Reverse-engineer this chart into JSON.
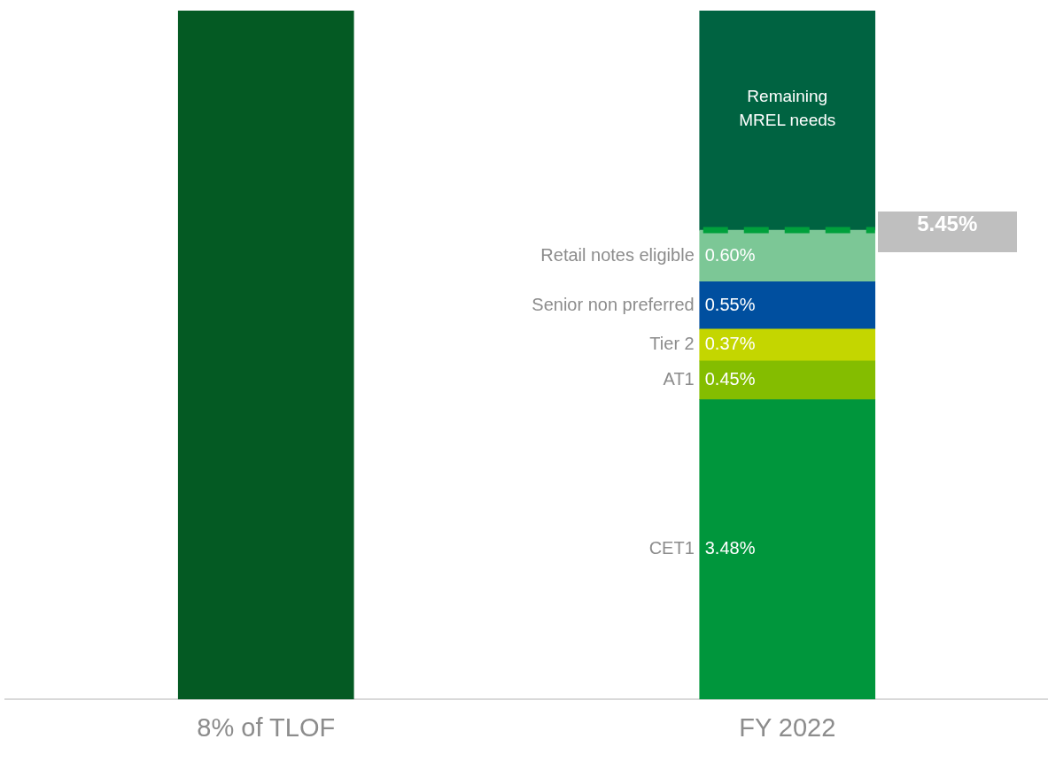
{
  "chart_data": {
    "type": "bar",
    "stacked": true,
    "categories": [
      "8% of TLOF",
      "FY 2022"
    ],
    "ylim": [
      0,
      8
    ],
    "grid": false,
    "legend": false,
    "series": [
      {
        "color": "#045a23",
        "values": [
          8,
          null
        ]
      },
      {
        "name": "CET1",
        "color": "#00963c",
        "values": [
          null,
          3.48
        ],
        "value_labels": [
          null,
          "3.48%"
        ]
      },
      {
        "name": "AT1",
        "color": "#84bd00",
        "values": [
          null,
          0.45
        ],
        "value_labels": [
          null,
          "0.45%"
        ]
      },
      {
        "name": "Tier 2",
        "color": "#c4d600",
        "values": [
          null,
          0.37
        ],
        "value_labels": [
          null,
          "0.37%"
        ]
      },
      {
        "name": "Senior non preferred",
        "color": "#004f9f",
        "values": [
          null,
          0.55
        ],
        "value_labels": [
          null,
          "0.55%"
        ]
      },
      {
        "name": "Retail notes eligible",
        "color": "#7cc796",
        "values": [
          null,
          0.6
        ],
        "value_labels": [
          null,
          "0.60%"
        ]
      },
      {
        "name": "Remaining MREL needs",
        "color": "#006341",
        "values": [
          null,
          2.55
        ]
      }
    ],
    "ref_lines": [
      {
        "axis": "y",
        "value": 5.45,
        "label": "5.45%",
        "color": "#00a03c",
        "line_style": "dashed"
      }
    ]
  }
}
